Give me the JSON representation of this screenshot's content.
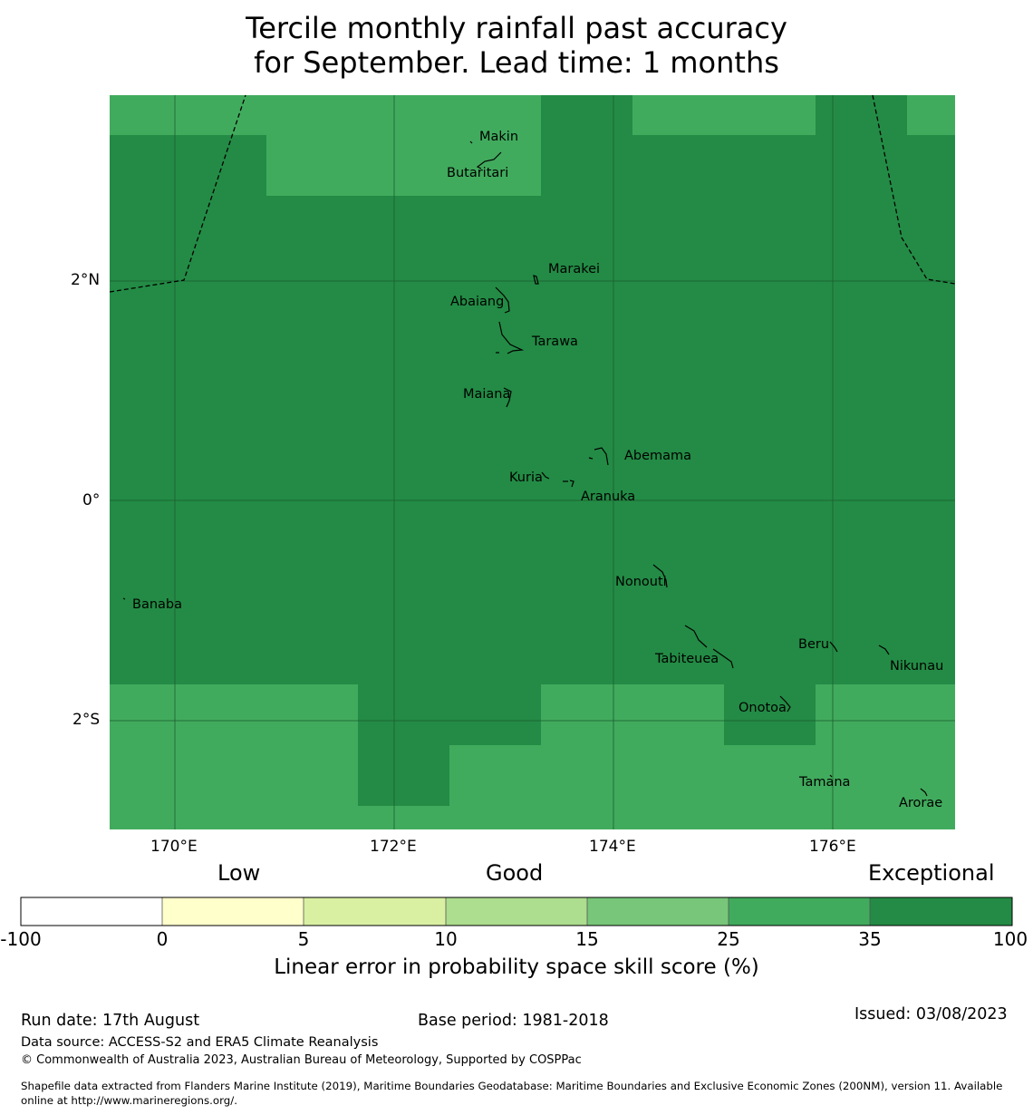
{
  "title": {
    "line1": "Tercile monthly rainfall past accuracy",
    "line2": "for September. Lead time: 1 months"
  },
  "map": {
    "extent": {
      "lon": [
        169.4,
        177.1
      ],
      "lat": [
        -3.0,
        3.7
      ]
    },
    "colors": {
      "exceptional": "#238b45",
      "very_good": "#41ab5d",
      "gridline": "#1a5e2e"
    },
    "lon_ticks": [
      "170°E",
      "172°E",
      "174°E",
      "176°E"
    ],
    "lat_ticks": [
      "2°N",
      "0°",
      "2°S"
    ],
    "islands": [
      {
        "name": "Makin"
      },
      {
        "name": "Butaritari"
      },
      {
        "name": "Marakei"
      },
      {
        "name": "Abaiang"
      },
      {
        "name": "Tarawa"
      },
      {
        "name": "Maiana"
      },
      {
        "name": "Abemama"
      },
      {
        "name": "Kuria"
      },
      {
        "name": "Aranuka"
      },
      {
        "name": "Nonouti"
      },
      {
        "name": "Banaba"
      },
      {
        "name": "Tabiteuea"
      },
      {
        "name": "Beru"
      },
      {
        "name": "Nikunau"
      },
      {
        "name": "Onotoa"
      },
      {
        "name": "Tamana"
      },
      {
        "name": "Arorae"
      }
    ]
  },
  "legend": {
    "categories": [
      "Low",
      "Good",
      "Exceptional"
    ],
    "bins": [
      {
        "color": "#ffffff"
      },
      {
        "color": "#ffffcc"
      },
      {
        "color": "#d9f0a3"
      },
      {
        "color": "#addd8e"
      },
      {
        "color": "#78c679"
      },
      {
        "color": "#41ab5d"
      },
      {
        "color": "#238b45"
      }
    ],
    "ticks": [
      "-100",
      "0",
      "5",
      "10",
      "15",
      "25",
      "35",
      "100"
    ],
    "label": "Linear error in probability space skill score (%)"
  },
  "footer": {
    "run_date": "Run date: 17th August",
    "base_period": "Base period: 1981-2018",
    "issued": "Issued: 03/08/2023",
    "data_source": "Data source: ACCESS-S2 and ERA5 Climate Reanalysis",
    "copyright": "© Commonwealth of Australia 2023, Australian Bureau of Meteorology, Supported by COSPPac",
    "shapefile_line1": "Shapefile data extracted from Flanders Marine Institute (2019), Maritime Boundaries Geodatabase: Maritime Boundaries and Exclusive Economic Zones (200NM), version 11. Available",
    "shapefile_line2": "online at http://www.marineregions.org/."
  }
}
